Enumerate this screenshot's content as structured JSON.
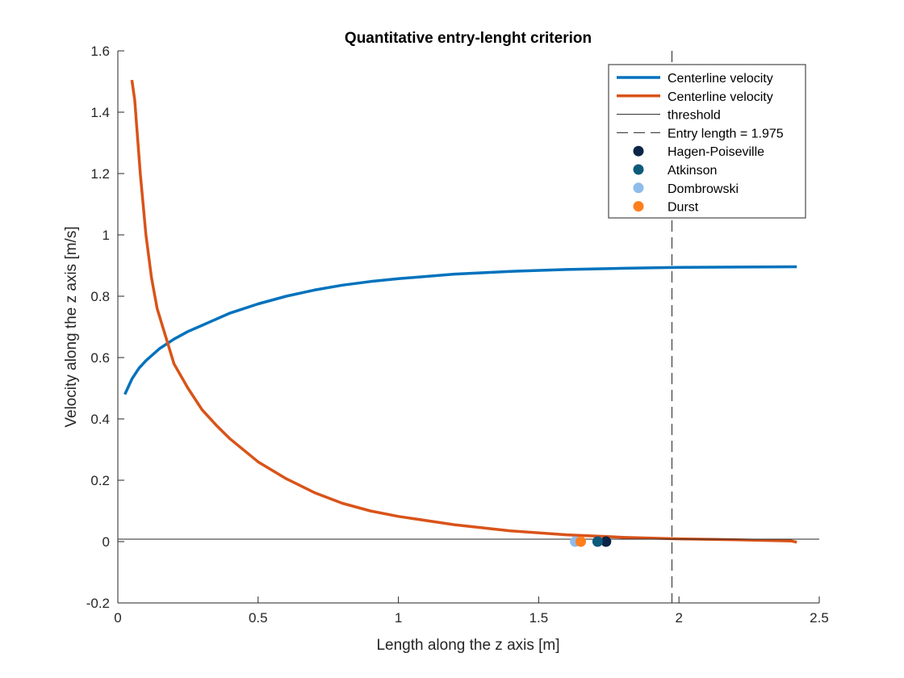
{
  "chart_data": {
    "type": "line",
    "title": "Quantitative entry-lenght criterion",
    "xlabel": "Length along the z axis [m]",
    "ylabel": "Velocity along the z axis [m/s]",
    "xlim": [
      0,
      2.5
    ],
    "ylim": [
      -0.2,
      1.6
    ],
    "xticks": [
      0,
      0.5,
      1,
      1.5,
      2,
      2.5
    ],
    "xtick_labels": [
      "0",
      "0.5",
      "1",
      "1.5",
      "2",
      "2.5"
    ],
    "yticks": [
      -0.2,
      0,
      0.2,
      0.4,
      0.6,
      0.8,
      1,
      1.2,
      1.4,
      1.6
    ],
    "ytick_labels": [
      "-0.2",
      "0",
      "0.2",
      "0.4",
      "0.6",
      "0.8",
      "1",
      "1.2",
      "1.4",
      "1.6"
    ],
    "grid": false,
    "legend_position": "top-right",
    "series": [
      {
        "name": "Centerline velocity",
        "kind": "line",
        "color": "#0072BD",
        "x": [
          0.025,
          0.05,
          0.075,
          0.1,
          0.15,
          0.2,
          0.25,
          0.3,
          0.4,
          0.5,
          0.6,
          0.7,
          0.8,
          0.9,
          1.0,
          1.2,
          1.4,
          1.6,
          1.8,
          2.0,
          2.2,
          2.42
        ],
        "y": [
          0.48,
          0.53,
          0.565,
          0.59,
          0.63,
          0.66,
          0.685,
          0.705,
          0.745,
          0.775,
          0.8,
          0.82,
          0.836,
          0.848,
          0.857,
          0.872,
          0.881,
          0.887,
          0.891,
          0.894,
          0.895,
          0.896
        ]
      },
      {
        "name": "Centerline velocity",
        "kind": "line",
        "color": "#D95319",
        "x": [
          0.05,
          0.06,
          0.08,
          0.1,
          0.12,
          0.14,
          0.16,
          0.18,
          0.2,
          0.25,
          0.3,
          0.35,
          0.4,
          0.5,
          0.6,
          0.7,
          0.8,
          0.9,
          1.0,
          1.2,
          1.4,
          1.6,
          1.8,
          2.0,
          2.2,
          2.4,
          2.42
        ],
        "y": [
          1.505,
          1.44,
          1.2,
          1.0,
          0.86,
          0.76,
          0.7,
          0.64,
          0.58,
          0.5,
          0.43,
          0.38,
          0.335,
          0.26,
          0.205,
          0.16,
          0.125,
          0.1,
          0.082,
          0.055,
          0.035,
          0.022,
          0.014,
          0.009,
          0.006,
          0.002,
          -0.002
        ]
      },
      {
        "name": "threshold",
        "kind": "hline",
        "color": "#262626",
        "y": 0.008
      },
      {
        "name": "Entry length = 1.975",
        "kind": "vline",
        "color": "#262626",
        "x": 1.975
      },
      {
        "name": "Hagen-Poiseville",
        "kind": "point",
        "color": "#0B2447",
        "x": 1.74,
        "y": 0
      },
      {
        "name": "Atkinson",
        "kind": "point",
        "color": "#0D5A7A",
        "x": 1.71,
        "y": 0
      },
      {
        "name": "Dombrowski",
        "kind": "point",
        "color": "#8FBCEB",
        "x": 1.63,
        "y": 0
      },
      {
        "name": "Durst",
        "kind": "point",
        "color": "#FF7F1E",
        "x": 1.65,
        "y": 0
      }
    ]
  }
}
